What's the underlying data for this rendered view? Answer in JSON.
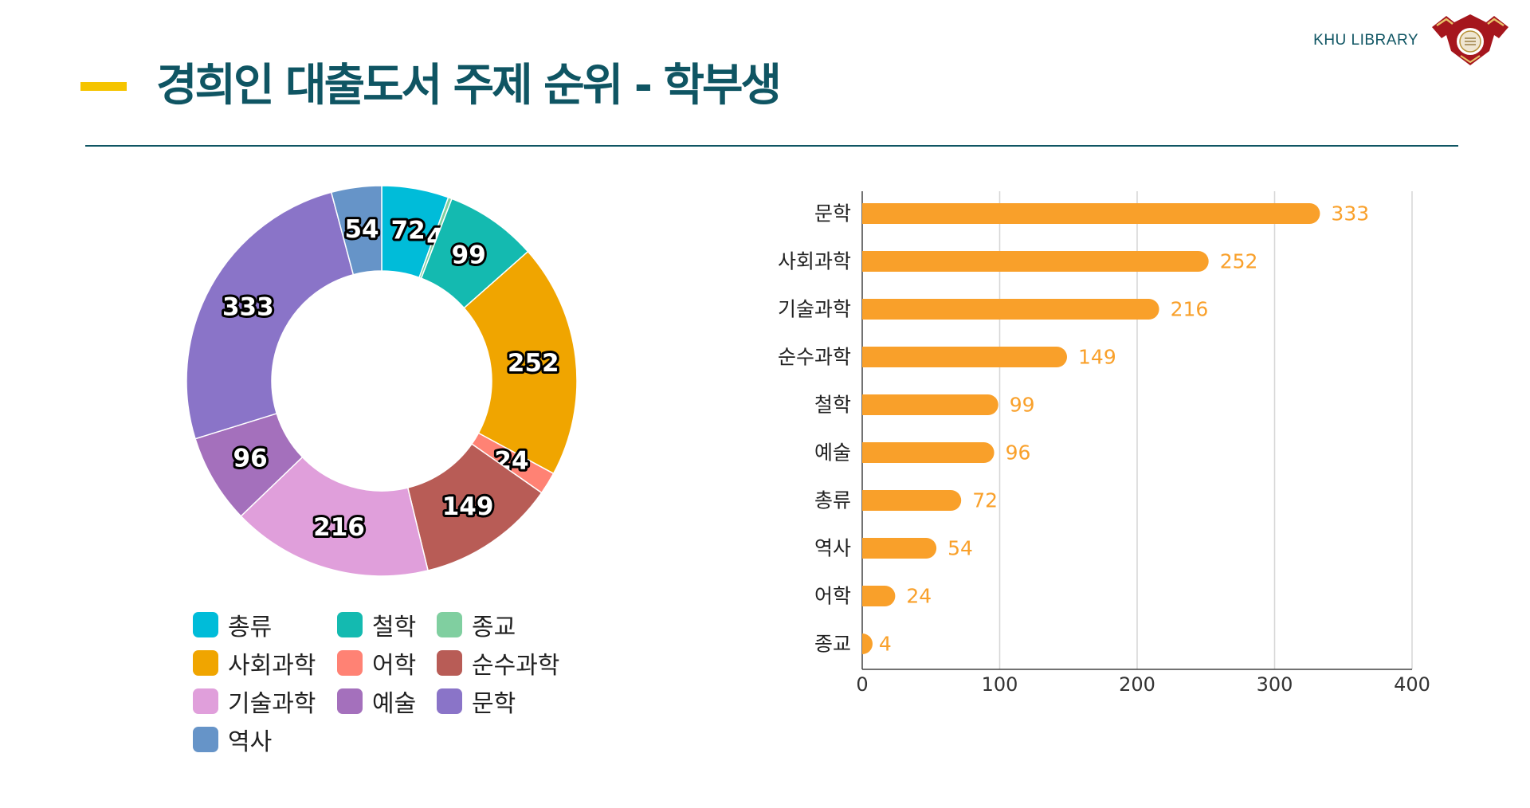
{
  "header": {
    "title": "경희인 대출도서 주제 순위 - 학부생",
    "brand": "KHU LIBRARY",
    "logo_icon": "university-emblem-icon"
  },
  "colors": {
    "title": "#0F5563",
    "accent": "#F5C400",
    "bar": "#F9A02A"
  },
  "chart_data": [
    {
      "type": "pie",
      "variant": "donut",
      "title": "",
      "labels": [
        "총류",
        "종교",
        "철학",
        "사회과학",
        "어학",
        "순수과학",
        "기술과학",
        "예술",
        "문학",
        "역사"
      ],
      "values": [
        72,
        4,
        99,
        252,
        24,
        149,
        216,
        96,
        333,
        54
      ],
      "colors": [
        "#00BCD9",
        "#80CFA0",
        "#14BAB0",
        "#F0A500",
        "#FF8274",
        "#B85C56",
        "#E09FDB",
        "#A470BC",
        "#8A74C8",
        "#6694C8"
      ],
      "legend": [
        {
          "label": "총류",
          "color": "#00BCD9"
        },
        {
          "label": "철학",
          "color": "#14BAB0"
        },
        {
          "label": "종교",
          "color": "#80CFA0"
        },
        {
          "label": "사회과학",
          "color": "#F0A500"
        },
        {
          "label": "어학",
          "color": "#FF8274"
        },
        {
          "label": "순수과학",
          "color": "#B85C56"
        },
        {
          "label": "기술과학",
          "color": "#E09FDB"
        },
        {
          "label": "예술",
          "color": "#A470BC"
        },
        {
          "label": "문학",
          "color": "#8A74C8"
        },
        {
          "label": "역사",
          "color": "#6694C8"
        }
      ],
      "legend_position": "bottom"
    },
    {
      "type": "bar",
      "orientation": "horizontal",
      "title": "",
      "categories": [
        "문학",
        "사회과학",
        "기술과학",
        "순수과학",
        "철학",
        "예술",
        "총류",
        "역사",
        "어학",
        "종교"
      ],
      "values": [
        333,
        252,
        216,
        149,
        99,
        96,
        72,
        54,
        24,
        4
      ],
      "xlim": [
        0,
        400
      ],
      "xticks": [
        "0",
        "100",
        "200",
        "300",
        "400"
      ],
      "xlabel": "",
      "ylabel": "",
      "grid": "vertical"
    }
  ]
}
